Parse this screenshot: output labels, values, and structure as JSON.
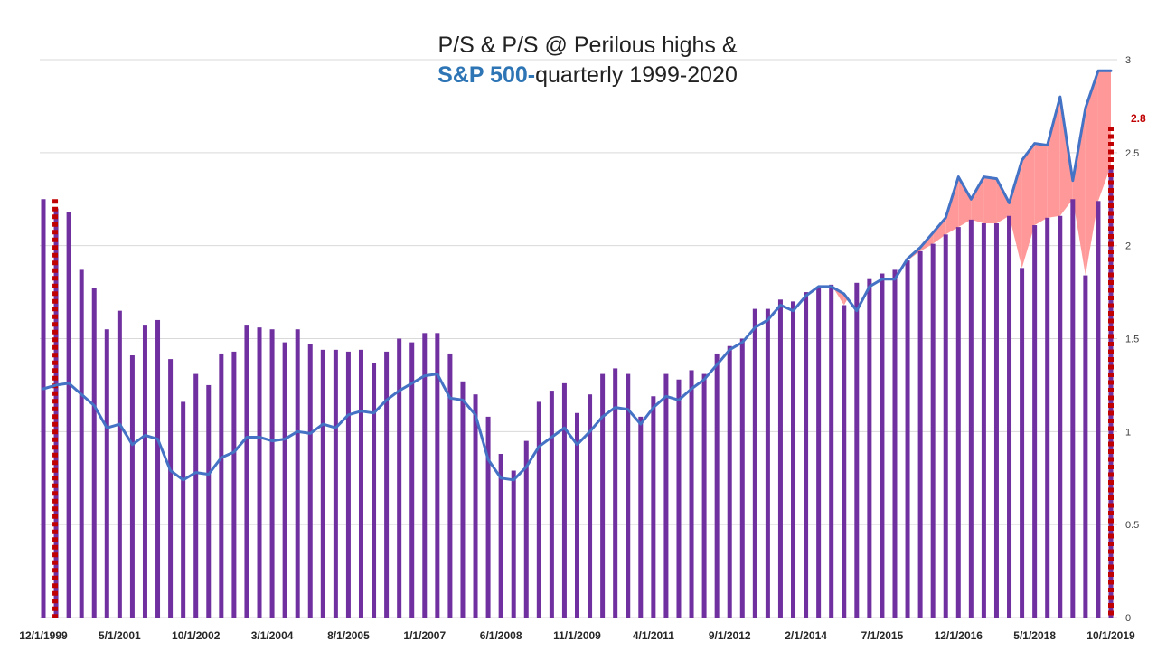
{
  "chart_data": {
    "type": "bar",
    "title_line1": "P/S & P/S @ Perilous highs &",
    "title_line2_accent": "S&P 500-",
    "title_line2_rest": "quarterly 1999-2020",
    "ylim": [
      0,
      3
    ],
    "y_ticks": [
      "0",
      "0.5",
      "1",
      "1.5",
      "2",
      "2.5",
      "3"
    ],
    "x_tick_labels": [
      "12/1/1999",
      "5/1/2001",
      "10/1/2002",
      "3/1/2004",
      "8/1/2005",
      "1/1/2007",
      "6/1/2008",
      "11/1/2009",
      "4/1/2011",
      "9/1/2012",
      "2/1/2014",
      "7/1/2015",
      "12/1/2016",
      "5/1/2018",
      "10/1/2019"
    ],
    "annotation": "2.8",
    "colors": {
      "bars": "#7030a0",
      "line": "#4472c4",
      "fill": "#ff9999",
      "dotted_marker": "#c00000",
      "grid": "#d9d9d9",
      "axis_text": "#404040",
      "annotation": "#c00000"
    },
    "series": [
      {
        "kind": "bar",
        "values": [
          2.25,
          2.2,
          2.18,
          1.87,
          1.77,
          1.55,
          1.65,
          1.41,
          1.57,
          1.6,
          1.39,
          1.16,
          1.31,
          1.25,
          1.42,
          1.43,
          1.57,
          1.56,
          1.55,
          1.48,
          1.55,
          1.47,
          1.44,
          1.44,
          1.43,
          1.44,
          1.37,
          1.43,
          1.5,
          1.48,
          1.53,
          1.53,
          1.42,
          1.27,
          1.2,
          1.08,
          0.88,
          0.79,
          0.95,
          1.16,
          1.22,
          1.26,
          1.1,
          1.2,
          1.31,
          1.34,
          1.31,
          1.08,
          1.19,
          1.31,
          1.28,
          1.33,
          1.31,
          1.42,
          1.46,
          1.5,
          1.66,
          1.66,
          1.71,
          1.7,
          1.75,
          1.78,
          1.79,
          1.68,
          1.8,
          1.82,
          1.85,
          1.87,
          1.92,
          1.97,
          2.01,
          2.06,
          2.1,
          2.14,
          2.12,
          2.12,
          2.16,
          1.88,
          2.11,
          2.15,
          2.16,
          2.25,
          1.84,
          2.24,
          2.43
        ]
      },
      {
        "kind": "line",
        "name": "S&P 500",
        "values": [
          1.23,
          1.25,
          1.26,
          1.2,
          1.14,
          1.02,
          1.04,
          0.93,
          0.98,
          0.96,
          0.79,
          0.74,
          0.78,
          0.77,
          0.86,
          0.89,
          0.97,
          0.97,
          0.95,
          0.96,
          1.0,
          0.99,
          1.04,
          1.02,
          1.09,
          1.11,
          1.1,
          1.17,
          1.22,
          1.26,
          1.3,
          1.31,
          1.18,
          1.17,
          1.09,
          0.85,
          0.75,
          0.74,
          0.81,
          0.92,
          0.97,
          1.02,
          0.93,
          1.0,
          1.08,
          1.13,
          1.12,
          1.04,
          1.13,
          1.19,
          1.17,
          1.23,
          1.28,
          1.36,
          1.44,
          1.48,
          1.56,
          1.6,
          1.68,
          1.65,
          1.73,
          1.78,
          1.78,
          1.74,
          1.65,
          1.78,
          1.82,
          1.82,
          1.93,
          1.99,
          2.07,
          2.15,
          2.37,
          2.25,
          2.37,
          2.36,
          2.23,
          2.46,
          2.55,
          2.54,
          2.8,
          2.35,
          2.74,
          2.94,
          2.94
        ]
      }
    ]
  }
}
